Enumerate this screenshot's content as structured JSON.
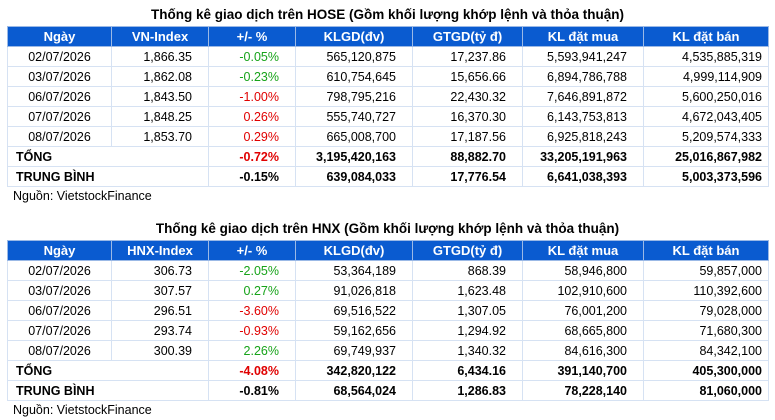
{
  "colors": {
    "header_bg": "#0a5bd0",
    "positive": "#17a31a",
    "negative": "#e00000"
  },
  "hose": {
    "title": "Thống kê giao dịch trên HOSE (Gồm khối lượng khớp lệnh và thỏa thuận)",
    "headers": [
      "Ngày",
      "VN-Index",
      "+/- %",
      "KLGD(đv)",
      "GTGD(tỷ đ)",
      "KL đặt mua",
      "KL đặt bán"
    ],
    "rows": [
      {
        "date": "02/07/2026",
        "index": "1,866.35",
        "pct": "-0.05%",
        "dir": "pos",
        "klgd": "565,120,875",
        "gtgd": "17,237.86",
        "mua": "5,593,941,247",
        "ban": "4,535,885,319"
      },
      {
        "date": "03/07/2026",
        "index": "1,862.08",
        "pct": "-0.23%",
        "dir": "pos",
        "klgd": "610,754,645",
        "gtgd": "15,656.66",
        "mua": "6,894,786,788",
        "ban": "4,999,114,909"
      },
      {
        "date": "06/07/2026",
        "index": "1,843.50",
        "pct": "-1.00%",
        "dir": "neg",
        "klgd": "798,795,216",
        "gtgd": "22,430.32",
        "mua": "7,646,891,872",
        "ban": "5,600,250,016"
      },
      {
        "date": "07/07/2026",
        "index": "1,848.25",
        "pct": "0.26%",
        "dir": "neg",
        "klgd": "555,740,727",
        "gtgd": "16,370.30",
        "mua": "6,143,753,813",
        "ban": "4,672,043,405"
      },
      {
        "date": "08/07/2026",
        "index": "1,853.70",
        "pct": "0.29%",
        "dir": "neg",
        "klgd": "665,008,700",
        "gtgd": "17,187.56",
        "mua": "6,925,818,243",
        "ban": "5,209,574,333"
      }
    ],
    "total": {
      "label": "TỔNG",
      "pct": "-0.72%",
      "dir": "neg",
      "klgd": "3,195,420,163",
      "gtgd": "88,882.70",
      "mua": "33,205,191,963",
      "ban": "25,016,867,982"
    },
    "avg": {
      "label": "TRUNG BÌNH",
      "pct": "-0.15%",
      "dir": "none",
      "klgd": "639,084,033",
      "gtgd": "17,776.54",
      "mua": "6,641,038,393",
      "ban": "5,003,373,596"
    },
    "source": "Nguồn: VietstockFinance"
  },
  "hnx": {
    "title": "Thống kê giao dịch trên HNX (Gồm khối lượng khớp lệnh và thỏa thuận)",
    "headers": [
      "Ngày",
      "HNX-Index",
      "+/- %",
      "KLGD(đv)",
      "GTGD(tỷ đ)",
      "KL đặt mua",
      "KL đặt bán"
    ],
    "rows": [
      {
        "date": "02/07/2026",
        "index": "306.73",
        "pct": "-2.05%",
        "dir": "pos",
        "klgd": "53,364,189",
        "gtgd": "868.39",
        "mua": "58,946,800",
        "ban": "59,857,000"
      },
      {
        "date": "03/07/2026",
        "index": "307.57",
        "pct": "0.27%",
        "dir": "pos",
        "klgd": "91,026,818",
        "gtgd": "1,623.48",
        "mua": "102,910,600",
        "ban": "110,392,600"
      },
      {
        "date": "06/07/2026",
        "index": "296.51",
        "pct": "-3.60%",
        "dir": "neg",
        "klgd": "69,516,522",
        "gtgd": "1,307.05",
        "mua": "76,001,200",
        "ban": "79,028,000"
      },
      {
        "date": "07/07/2026",
        "index": "293.74",
        "pct": "-0.93%",
        "dir": "neg",
        "klgd": "59,162,656",
        "gtgd": "1,294.92",
        "mua": "68,665,800",
        "ban": "71,680,300"
      },
      {
        "date": "08/07/2026",
        "index": "300.39",
        "pct": "2.26%",
        "dir": "pos",
        "klgd": "69,749,937",
        "gtgd": "1,340.32",
        "mua": "84,616,300",
        "ban": "84,342,100"
      }
    ],
    "total": {
      "label": "TỔNG",
      "pct": "-4.08%",
      "dir": "neg",
      "klgd": "342,820,122",
      "gtgd": "6,434.16",
      "mua": "391,140,700",
      "ban": "405,300,000"
    },
    "avg": {
      "label": "TRUNG BÌNH",
      "pct": "-0.81%",
      "dir": "none",
      "klgd": "68,564,024",
      "gtgd": "1,286.83",
      "mua": "78,228,140",
      "ban": "81,060,000"
    },
    "source": "Nguồn: VietstockFinance"
  }
}
